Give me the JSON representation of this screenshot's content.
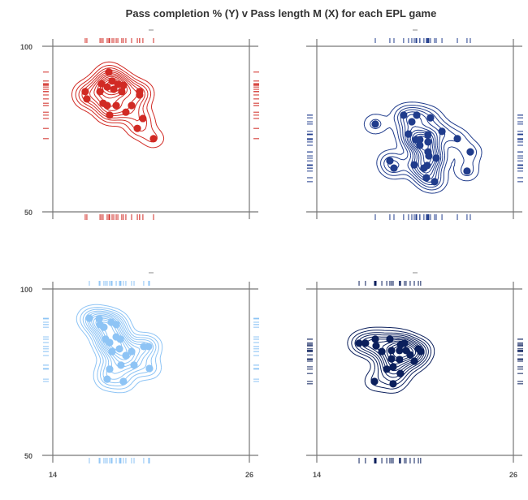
{
  "chart_data": {
    "title": "Pass completion % (Y) v Pass length M (X) for each EPL game",
    "xlim": [
      14,
      26
    ],
    "ylim": [
      50,
      100
    ],
    "x_ticks": [
      "14",
      "26"
    ],
    "y_ticks": [
      "100",
      "50"
    ],
    "grid": false,
    "panels": [
      {
        "type": "scatter",
        "overlay": "2d density contours + rug",
        "color": "#d12a24",
        "x": [
          17.42,
          15.98,
          16.08,
          16.88,
          17.32,
          17.72,
          18.31,
          18.21,
          19.3,
          19.3,
          17.07,
          17.32,
          17.87,
          18.81,
          18.46,
          17.47,
          19.5,
          19.16,
          20.15,
          16.97,
          17.62,
          17.97
        ],
        "y": [
          92.2,
          86.3,
          84.1,
          86.3,
          87.7,
          87.0,
          88.2,
          86.3,
          86.3,
          85.3,
          82.8,
          82.1,
          82.1,
          82.1,
          80.1,
          79.2,
          78.2,
          75.2,
          72.1,
          88.7,
          89.5,
          88.5
        ]
      },
      {
        "type": "scatter",
        "overlay": "2d density contours + rug",
        "color": "#203c8c",
        "x": [
          17.57,
          19.3,
          20.1,
          20.94,
          19.8,
          19.6,
          20.29,
          20.05,
          20.79,
          20.79,
          20.29,
          21.64,
          22.58,
          23.37,
          23.17,
          18.46,
          18.71,
          20.79,
          20.84,
          21.29,
          19.95,
          20.54,
          20.74,
          20.69,
          21.19
        ],
        "y": [
          76.5,
          79.2,
          79.2,
          78.4,
          77.2,
          73.5,
          71.8,
          71.8,
          73.3,
          71.1,
          70.1,
          74.3,
          72.1,
          68.1,
          62.3,
          65.4,
          63.2,
          68.1,
          66.9,
          66.2,
          64.2,
          63.2,
          64.0,
          60.3,
          59.1
        ]
      },
      {
        "type": "scatter",
        "overlay": "2d density contours + rug",
        "color": "#8ec4f5",
        "x": [
          16.23,
          16.83,
          16.88,
          17.12,
          17.57,
          17.87,
          17.87,
          17.22,
          17.47,
          18.12,
          17.62,
          18.07,
          18.46,
          18.81,
          19.55,
          19.85,
          17.47,
          18.16,
          18.96,
          19.9,
          17.32,
          18.31
        ],
        "y": [
          91.2,
          91.0,
          89.3,
          88.5,
          90.0,
          89.3,
          85.6,
          84.9,
          83.9,
          84.9,
          81.2,
          82.0,
          80.0,
          81.2,
          82.7,
          82.7,
          75.9,
          77.1,
          77.1,
          76.1,
          72.9,
          72.2
        ]
      },
      {
        "type": "scatter",
        "overlay": "2d density contours + rug",
        "color": "#0b1f5c",
        "x": [
          16.58,
          16.97,
          17.57,
          18.46,
          17.62,
          17.97,
          18.56,
          19.11,
          19.35,
          19.05,
          19.45,
          20.2,
          20.34,
          18.56,
          19.05,
          19.7,
          19.95,
          18.66,
          18.27,
          19.1,
          17.52,
          18.66
        ],
        "y": [
          83.7,
          83.7,
          84.9,
          84.9,
          82.9,
          81.2,
          81.5,
          83.2,
          83.7,
          81.5,
          81.5,
          82.0,
          81.2,
          79.0,
          78.8,
          80.2,
          78.3,
          76.6,
          75.9,
          74.6,
          72.2,
          71.5
        ]
      }
    ]
  }
}
